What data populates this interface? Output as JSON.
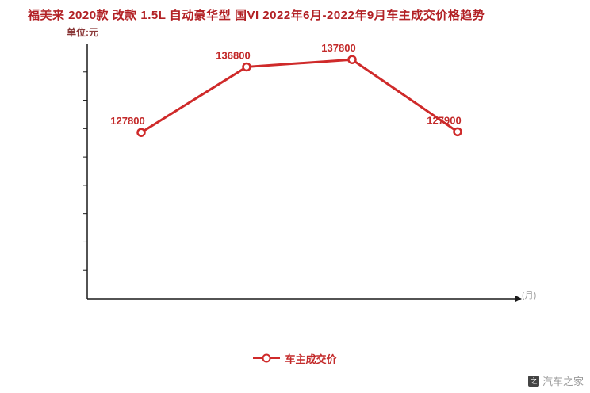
{
  "chart": {
    "title": "福美来 2020款 改款 1.5L 自动豪华型 国VI 2022年6月-2022年9月车主成交价格趋势",
    "unit_label": "单位:元",
    "axis_right_label": "(月)",
    "legend_label": "车主成交价"
  },
  "watermark": "汽车之家",
  "colors": {
    "line": "#cf2a2a",
    "point_fill": "#ffffff",
    "label": "#c32a2a",
    "axis": "#1a1a1a"
  },
  "chart_data": {
    "type": "line",
    "title": "福美来 2020款 改款 1.5L 自动豪华型 国VI 2022年6月-2022年9月车主成交价格趋势",
    "ylabel": "单位:元",
    "legend": [
      "车主成交价"
    ],
    "legend_position": "bottom",
    "grid": false,
    "ylim": [
      105000,
      140000
    ],
    "series": [
      {
        "name": "车主成交价",
        "values": [
          127800,
          136800,
          137800,
          127900
        ],
        "point_labels": [
          "127800",
          "136800",
          "137800",
          "127900"
        ]
      }
    ]
  }
}
